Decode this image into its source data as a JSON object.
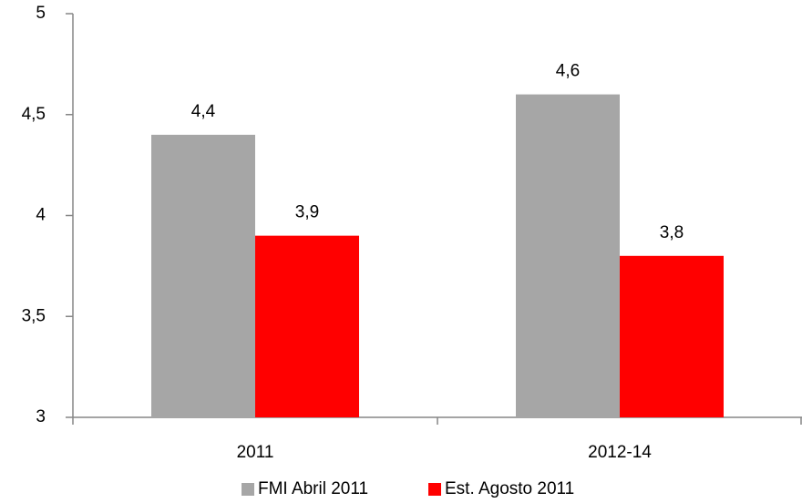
{
  "chart_data": {
    "type": "bar",
    "categories": [
      "2011",
      "2012-14"
    ],
    "series": [
      {
        "name": "FMI Abril 2011",
        "color": "#a6a6a6",
        "values": [
          4.4,
          4.6
        ],
        "value_labels": [
          "4,4",
          "4,6"
        ]
      },
      {
        "name": "Est. Agosto 2011",
        "color": "#ff0000",
        "values": [
          3.9,
          3.8
        ],
        "value_labels": [
          "3,9",
          "3,8"
        ]
      }
    ],
    "ylim": [
      3,
      5
    ],
    "yticks": [
      3,
      {
        "value": 3.5,
        "label": "3,5"
      },
      4,
      {
        "value": 4.5,
        "label": "4,5"
      },
      5
    ],
    "legend": "bottom"
  }
}
